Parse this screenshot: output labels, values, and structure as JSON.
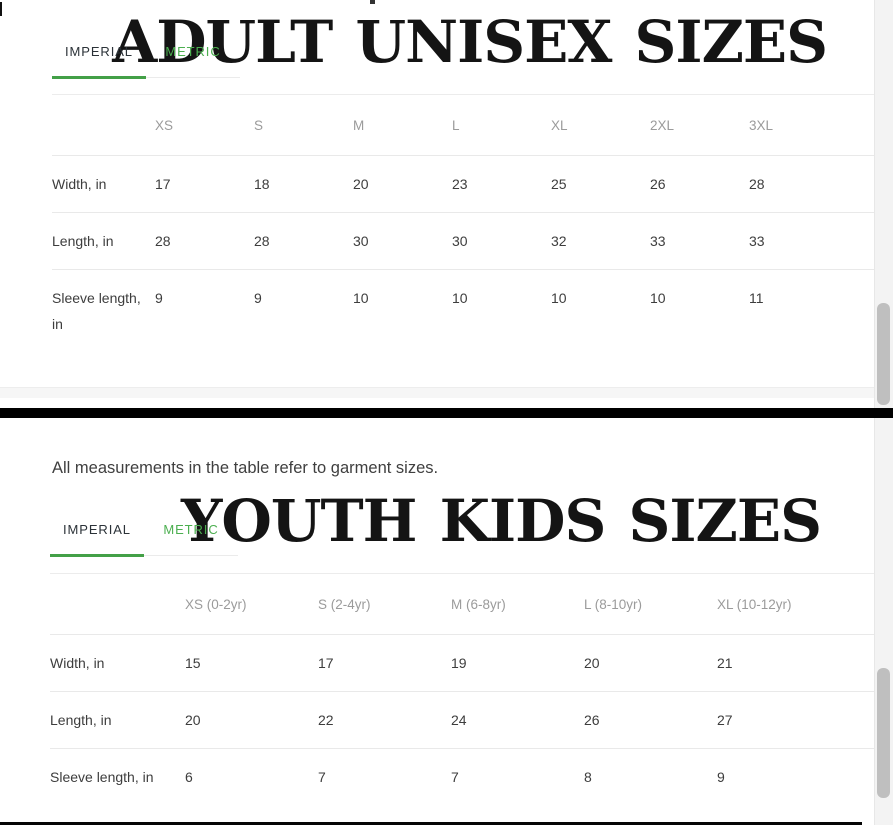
{
  "colors": {
    "accent_green": "#4CAF50",
    "underline_green": "#43A047",
    "divider": "#000000"
  },
  "adult_panel": {
    "title": "ADULT UNISEX SIZES",
    "tabs": {
      "imperial": "IMPERIAL",
      "metric": "METRIC",
      "active": "IMPERIAL"
    },
    "table": {
      "columns": [
        "XS",
        "S",
        "M",
        "L",
        "XL",
        "2XL",
        "3XL"
      ],
      "rows": [
        {
          "label": "Width, in",
          "values": [
            "17",
            "18",
            "20",
            "23",
            "25",
            "26",
            "28"
          ]
        },
        {
          "label": "Length, in",
          "values": [
            "28",
            "28",
            "30",
            "30",
            "32",
            "33",
            "33"
          ]
        },
        {
          "label": "Sleeve length, in",
          "values": [
            "9",
            "9",
            "10",
            "10",
            "10",
            "10",
            "11"
          ]
        }
      ]
    }
  },
  "note": "All measurements in the table refer to garment sizes.",
  "youth_panel": {
    "title": "YOUTH KIDS SIZES",
    "tabs": {
      "imperial": "IMPERIAL",
      "metric": "METRIC",
      "active": "IMPERIAL"
    },
    "table": {
      "columns": [
        "XS (0-2yr)",
        "S (2-4yr)",
        "M (6-8yr)",
        "L (8-10yr)",
        "XL (10-12yr)"
      ],
      "rows": [
        {
          "label": "Width, in",
          "values": [
            "15",
            "17",
            "19",
            "20",
            "21"
          ]
        },
        {
          "label": "Length, in",
          "values": [
            "20",
            "22",
            "24",
            "26",
            "27"
          ]
        },
        {
          "label": "Sleeve length, in",
          "values": [
            "6",
            "7",
            "7",
            "8",
            "9"
          ]
        }
      ]
    }
  }
}
